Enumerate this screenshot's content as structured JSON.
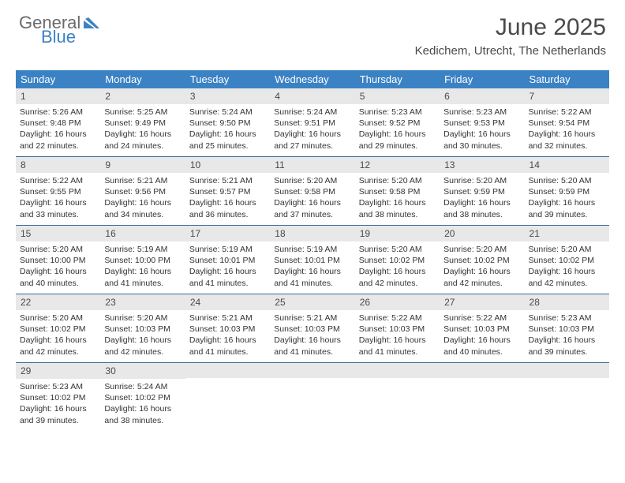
{
  "logo": {
    "line1": "General",
    "line2": "Blue"
  },
  "title": "June 2025",
  "location": "Kedichem, Utrecht, The Netherlands",
  "colors": {
    "header_bg": "#3b82c4",
    "daynum_bg": "#e8e8e8",
    "week_border": "#3b6a9a",
    "text": "#4a4a4a"
  },
  "days_of_week": [
    "Sunday",
    "Monday",
    "Tuesday",
    "Wednesday",
    "Thursday",
    "Friday",
    "Saturday"
  ],
  "weeks": [
    [
      {
        "n": "1",
        "sunrise": "5:26 AM",
        "sunset": "9:48 PM",
        "daylight": "16 hours and 22 minutes."
      },
      {
        "n": "2",
        "sunrise": "5:25 AM",
        "sunset": "9:49 PM",
        "daylight": "16 hours and 24 minutes."
      },
      {
        "n": "3",
        "sunrise": "5:24 AM",
        "sunset": "9:50 PM",
        "daylight": "16 hours and 25 minutes."
      },
      {
        "n": "4",
        "sunrise": "5:24 AM",
        "sunset": "9:51 PM",
        "daylight": "16 hours and 27 minutes."
      },
      {
        "n": "5",
        "sunrise": "5:23 AM",
        "sunset": "9:52 PM",
        "daylight": "16 hours and 29 minutes."
      },
      {
        "n": "6",
        "sunrise": "5:23 AM",
        "sunset": "9:53 PM",
        "daylight": "16 hours and 30 minutes."
      },
      {
        "n": "7",
        "sunrise": "5:22 AM",
        "sunset": "9:54 PM",
        "daylight": "16 hours and 32 minutes."
      }
    ],
    [
      {
        "n": "8",
        "sunrise": "5:22 AM",
        "sunset": "9:55 PM",
        "daylight": "16 hours and 33 minutes."
      },
      {
        "n": "9",
        "sunrise": "5:21 AM",
        "sunset": "9:56 PM",
        "daylight": "16 hours and 34 minutes."
      },
      {
        "n": "10",
        "sunrise": "5:21 AM",
        "sunset": "9:57 PM",
        "daylight": "16 hours and 36 minutes."
      },
      {
        "n": "11",
        "sunrise": "5:20 AM",
        "sunset": "9:58 PM",
        "daylight": "16 hours and 37 minutes."
      },
      {
        "n": "12",
        "sunrise": "5:20 AM",
        "sunset": "9:58 PM",
        "daylight": "16 hours and 38 minutes."
      },
      {
        "n": "13",
        "sunrise": "5:20 AM",
        "sunset": "9:59 PM",
        "daylight": "16 hours and 38 minutes."
      },
      {
        "n": "14",
        "sunrise": "5:20 AM",
        "sunset": "9:59 PM",
        "daylight": "16 hours and 39 minutes."
      }
    ],
    [
      {
        "n": "15",
        "sunrise": "5:20 AM",
        "sunset": "10:00 PM",
        "daylight": "16 hours and 40 minutes."
      },
      {
        "n": "16",
        "sunrise": "5:19 AM",
        "sunset": "10:00 PM",
        "daylight": "16 hours and 41 minutes."
      },
      {
        "n": "17",
        "sunrise": "5:19 AM",
        "sunset": "10:01 PM",
        "daylight": "16 hours and 41 minutes."
      },
      {
        "n": "18",
        "sunrise": "5:19 AM",
        "sunset": "10:01 PM",
        "daylight": "16 hours and 41 minutes."
      },
      {
        "n": "19",
        "sunrise": "5:20 AM",
        "sunset": "10:02 PM",
        "daylight": "16 hours and 42 minutes."
      },
      {
        "n": "20",
        "sunrise": "5:20 AM",
        "sunset": "10:02 PM",
        "daylight": "16 hours and 42 minutes."
      },
      {
        "n": "21",
        "sunrise": "5:20 AM",
        "sunset": "10:02 PM",
        "daylight": "16 hours and 42 minutes."
      }
    ],
    [
      {
        "n": "22",
        "sunrise": "5:20 AM",
        "sunset": "10:02 PM",
        "daylight": "16 hours and 42 minutes."
      },
      {
        "n": "23",
        "sunrise": "5:20 AM",
        "sunset": "10:03 PM",
        "daylight": "16 hours and 42 minutes."
      },
      {
        "n": "24",
        "sunrise": "5:21 AM",
        "sunset": "10:03 PM",
        "daylight": "16 hours and 41 minutes."
      },
      {
        "n": "25",
        "sunrise": "5:21 AM",
        "sunset": "10:03 PM",
        "daylight": "16 hours and 41 minutes."
      },
      {
        "n": "26",
        "sunrise": "5:22 AM",
        "sunset": "10:03 PM",
        "daylight": "16 hours and 41 minutes."
      },
      {
        "n": "27",
        "sunrise": "5:22 AM",
        "sunset": "10:03 PM",
        "daylight": "16 hours and 40 minutes."
      },
      {
        "n": "28",
        "sunrise": "5:23 AM",
        "sunset": "10:03 PM",
        "daylight": "16 hours and 39 minutes."
      }
    ],
    [
      {
        "n": "29",
        "sunrise": "5:23 AM",
        "sunset": "10:02 PM",
        "daylight": "16 hours and 39 minutes."
      },
      {
        "n": "30",
        "sunrise": "5:24 AM",
        "sunset": "10:02 PM",
        "daylight": "16 hours and 38 minutes."
      },
      null,
      null,
      null,
      null,
      null
    ]
  ],
  "labels": {
    "sunrise": "Sunrise:",
    "sunset": "Sunset:",
    "daylight": "Daylight:"
  }
}
